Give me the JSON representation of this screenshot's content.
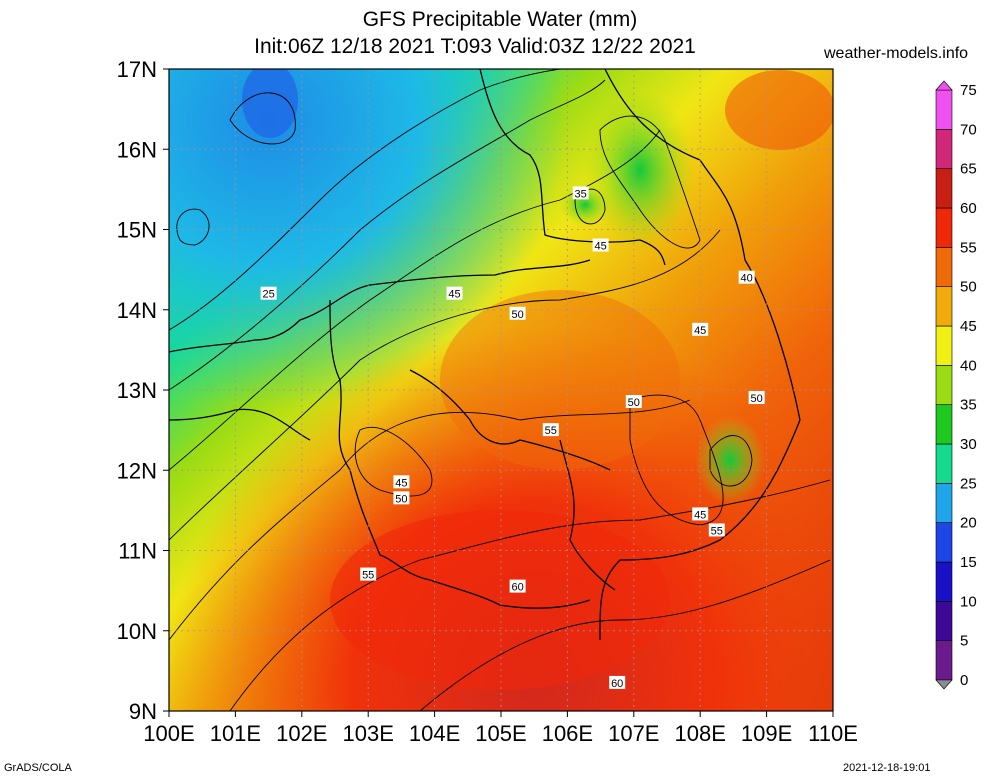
{
  "header": {
    "title": "GFS Precipitable Water (mm)",
    "subtitle": "Init:06Z 12/18 2021 T:093 Valid:03Z 12/22 2021",
    "site": "weather-models.info"
  },
  "footer": {
    "left": "GrADS/COLA",
    "right": "2021-12-18-19:01"
  },
  "map": {
    "lat_labels": [
      "17N",
      "16N",
      "15N",
      "14N",
      "13N",
      "12N",
      "11N",
      "10N",
      "9N"
    ],
    "lon_labels": [
      "100E",
      "101E",
      "102E",
      "103E",
      "104E",
      "105E",
      "106E",
      "107E",
      "108E",
      "109E",
      "110E"
    ],
    "lat_range": [
      9,
      17
    ],
    "lon_range": [
      100,
      110
    ],
    "contour_labels": [
      {
        "text": "25",
        "lon": 101.5,
        "lat": 14.2
      },
      {
        "text": "35",
        "lon": 106.2,
        "lat": 15.45
      },
      {
        "text": "40",
        "lon": 108.7,
        "lat": 14.4
      },
      {
        "text": "45",
        "lon": 104.3,
        "lat": 14.2
      },
      {
        "text": "45",
        "lon": 106.5,
        "lat": 14.8
      },
      {
        "text": "45",
        "lon": 108.0,
        "lat": 13.75
      },
      {
        "text": "45",
        "lon": 103.5,
        "lat": 11.85
      },
      {
        "text": "45",
        "lon": 108.0,
        "lat": 11.45
      },
      {
        "text": "50",
        "lon": 105.25,
        "lat": 13.95
      },
      {
        "text": "50",
        "lon": 107.0,
        "lat": 12.85
      },
      {
        "text": "50",
        "lon": 108.85,
        "lat": 12.9
      },
      {
        "text": "50",
        "lon": 103.5,
        "lat": 11.65
      },
      {
        "text": "55",
        "lon": 105.75,
        "lat": 12.5
      },
      {
        "text": "55",
        "lon": 103.0,
        "lat": 10.7
      },
      {
        "text": "55",
        "lon": 108.25,
        "lat": 11.25
      },
      {
        "text": "60",
        "lon": 105.25,
        "lat": 10.55
      },
      {
        "text": "60",
        "lon": 106.75,
        "lat": 9.35
      }
    ]
  },
  "colorbar": {
    "levels": [
      "0",
      "5",
      "10",
      "15",
      "20",
      "25",
      "30",
      "35",
      "40",
      "45",
      "50",
      "55",
      "60",
      "65",
      "70",
      "75"
    ],
    "colors": [
      "#8c8c8c",
      "#6a1a8a",
      "#3c0a96",
      "#1a10c8",
      "#1e46e6",
      "#1ea5ea",
      "#14dc8c",
      "#1ec81e",
      "#9bdc14",
      "#f0f014",
      "#f0aa0a",
      "#f06a0a",
      "#f0280a",
      "#c81e14",
      "#d2287a",
      "#f050f0"
    ]
  }
}
